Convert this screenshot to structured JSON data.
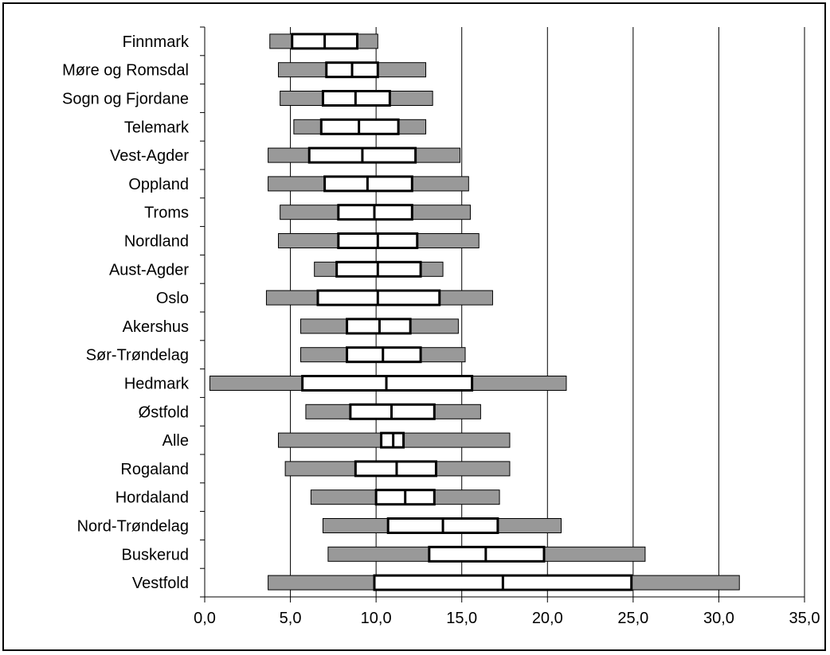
{
  "chart_data": {
    "type": "boxplot",
    "orientation": "horizontal",
    "title": "",
    "xlabel": "",
    "ylabel": "",
    "xlim": [
      0,
      35
    ],
    "x_ticks": [
      "0,0",
      "5,0",
      "10,0",
      "15,0",
      "20,0",
      "25,0",
      "30,0",
      "35,0"
    ],
    "grid": "vertical",
    "colors": {
      "whisker": "#999999",
      "box": "#ffffff",
      "outline": "#000000",
      "grid": "#000000"
    },
    "categories": [
      "Finnmark",
      "Møre og Romsdal",
      "Sogn og Fjordane",
      "Telemark",
      "Vest-Agder",
      "Oppland",
      "Troms",
      "Nordland",
      "Aust-Agder",
      "Oslo",
      "Akershus",
      "Sør-Trøndelag",
      "Hedmark",
      "Østfold",
      "Alle",
      "Rogaland",
      "Hordaland",
      "Nord-Trøndelag",
      "Buskerud",
      "Vestfold"
    ],
    "boxes": [
      {
        "min": 3.8,
        "q1": 5.1,
        "median": 7.0,
        "q3": 8.9,
        "max": 10.1
      },
      {
        "min": 4.3,
        "q1": 7.1,
        "median": 8.6,
        "q3": 10.1,
        "max": 12.9
      },
      {
        "min": 4.4,
        "q1": 6.9,
        "median": 8.8,
        "q3": 10.8,
        "max": 13.3
      },
      {
        "min": 5.2,
        "q1": 6.8,
        "median": 9.0,
        "q3": 11.3,
        "max": 12.9
      },
      {
        "min": 3.7,
        "q1": 6.1,
        "median": 9.2,
        "q3": 12.3,
        "max": 14.9
      },
      {
        "min": 3.7,
        "q1": 7.0,
        "median": 9.5,
        "q3": 12.1,
        "max": 15.4
      },
      {
        "min": 4.4,
        "q1": 7.8,
        "median": 9.9,
        "q3": 12.1,
        "max": 15.5
      },
      {
        "min": 4.3,
        "q1": 7.8,
        "median": 10.1,
        "q3": 12.4,
        "max": 16.0
      },
      {
        "min": 6.4,
        "q1": 7.7,
        "median": 10.1,
        "q3": 12.6,
        "max": 13.9
      },
      {
        "min": 3.6,
        "q1": 6.6,
        "median": 10.1,
        "q3": 13.7,
        "max": 16.8
      },
      {
        "min": 5.6,
        "q1": 8.3,
        "median": 10.2,
        "q3": 12.0,
        "max": 14.8
      },
      {
        "min": 5.6,
        "q1": 8.3,
        "median": 10.4,
        "q3": 12.6,
        "max": 15.2
      },
      {
        "min": 0.3,
        "q1": 5.7,
        "median": 10.6,
        "q3": 15.6,
        "max": 21.1
      },
      {
        "min": 5.9,
        "q1": 8.5,
        "median": 10.9,
        "q3": 13.4,
        "max": 16.1
      },
      {
        "min": 4.3,
        "q1": 10.3,
        "median": 11.0,
        "q3": 11.6,
        "max": 17.8
      },
      {
        "min": 4.7,
        "q1": 8.8,
        "median": 11.2,
        "q3": 13.5,
        "max": 17.8
      },
      {
        "min": 6.2,
        "q1": 10.0,
        "median": 11.7,
        "q3": 13.4,
        "max": 17.2
      },
      {
        "min": 6.9,
        "q1": 10.7,
        "median": 13.9,
        "q3": 17.1,
        "max": 20.8
      },
      {
        "min": 7.2,
        "q1": 13.1,
        "median": 16.4,
        "q3": 19.8,
        "max": 25.7
      },
      {
        "min": 3.7,
        "q1": 9.9,
        "median": 17.4,
        "q3": 24.9,
        "max": 31.2
      }
    ]
  }
}
